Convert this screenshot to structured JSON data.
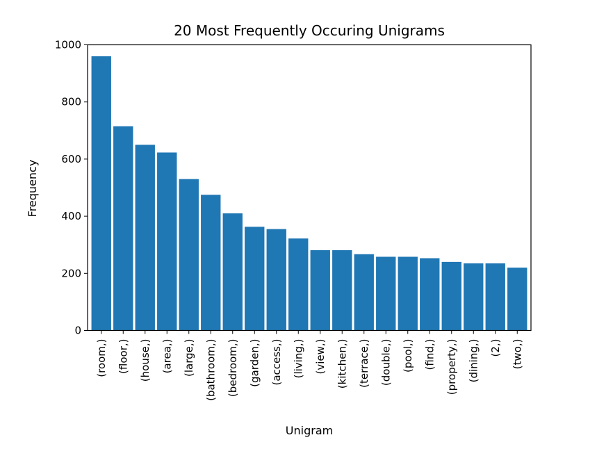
{
  "chart_data": {
    "type": "bar",
    "title": "20 Most Frequently Occuring Unigrams",
    "xlabel": "Unigram",
    "ylabel": "Frequency",
    "ylim": [
      0,
      1000
    ],
    "yticks": [
      0,
      200,
      400,
      600,
      800,
      1000
    ],
    "grid": false,
    "legend": "none",
    "bar_color": "#1f77b4",
    "categories": [
      "(room,)",
      "(floor,)",
      "(house,)",
      "(area,)",
      "(large,)",
      "(bathroom,)",
      "(bedroom,)",
      "(garden,)",
      "(access,)",
      "(living,)",
      "(view,)",
      "(kitchen,)",
      "(terrace,)",
      "(double,)",
      "(pool,)",
      "(find,)",
      "(property,)",
      "(dining,)",
      "(2,)",
      "(two,)"
    ],
    "values": [
      960,
      715,
      650,
      623,
      530,
      475,
      410,
      363,
      355,
      322,
      281,
      281,
      267,
      258,
      258,
      253,
      240,
      235,
      235,
      220
    ]
  }
}
